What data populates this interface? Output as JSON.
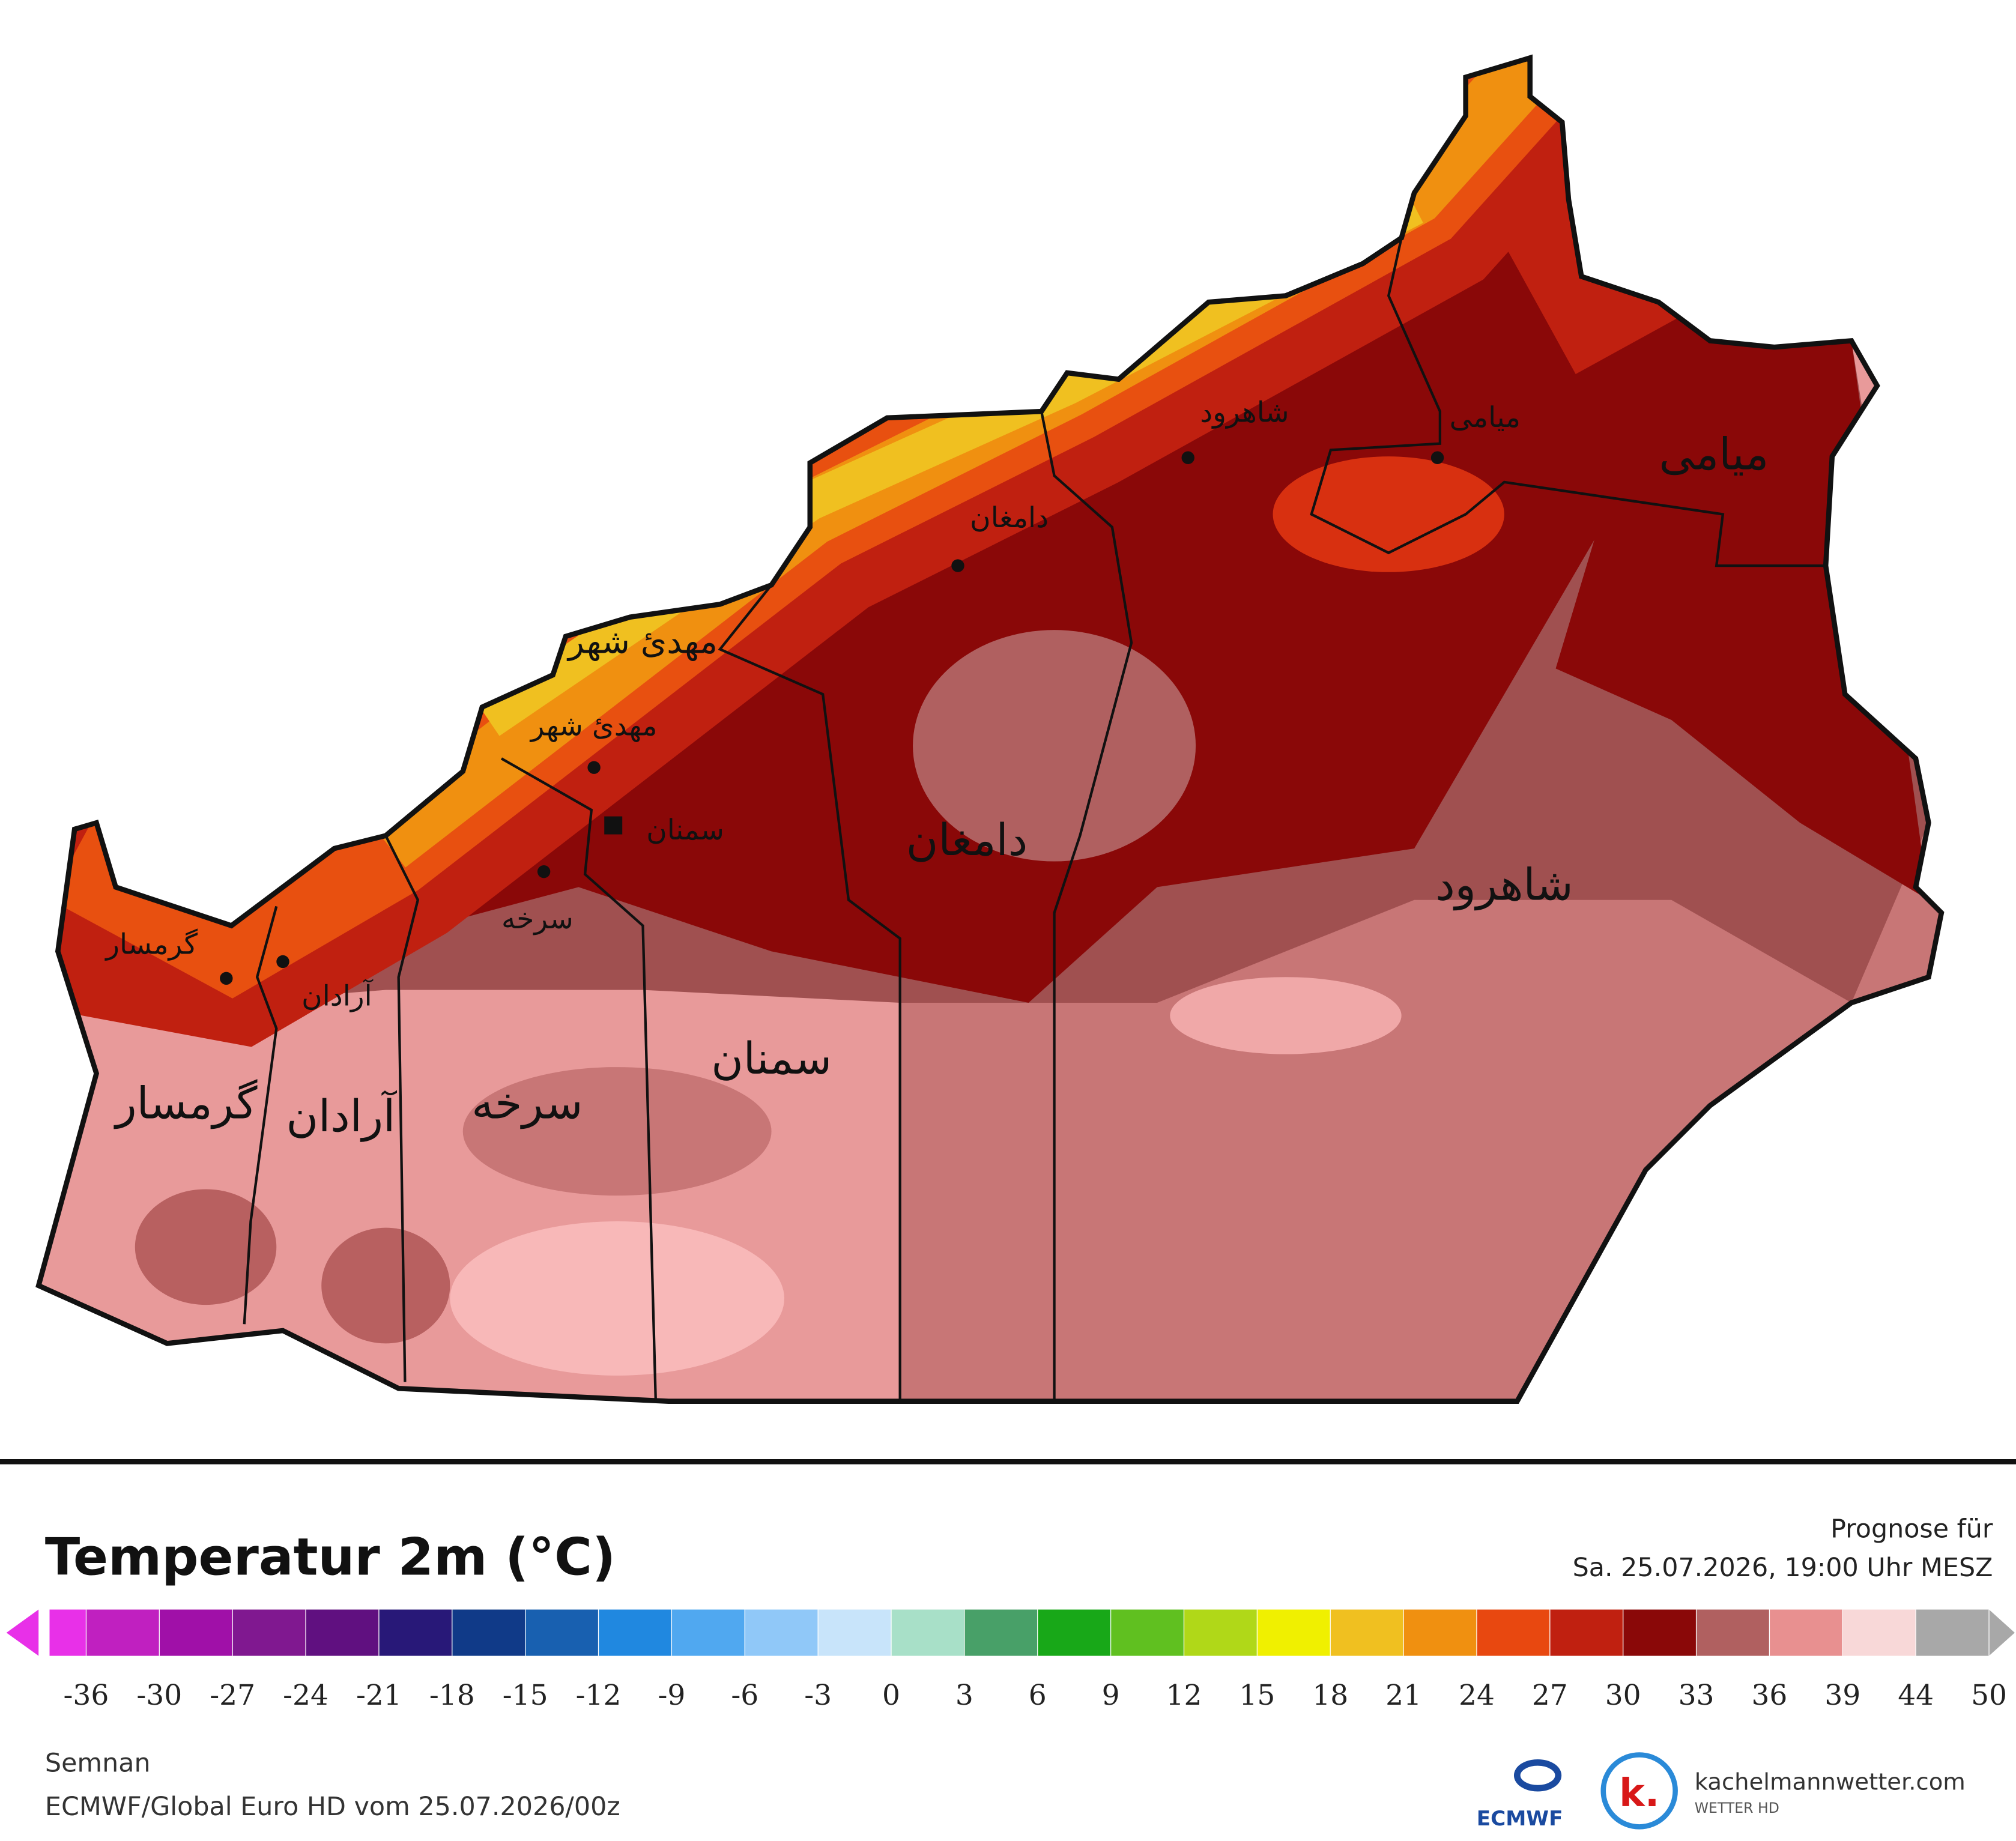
{
  "map": {
    "region_labels": [
      "گرمسار",
      "آرادان",
      "سرخه",
      "سمنان",
      "دامغان",
      "شاهرود",
      "میامی",
      "مهدئ شهر"
    ],
    "city_labels": [
      "گرمسار",
      "آرادان",
      "سرخه",
      "سمنان",
      "مهدئ شهر",
      "دامغان",
      "شاهرود",
      "میامی"
    ]
  },
  "legend": {
    "title": "Temperatur 2m (°C)",
    "ticks": [
      -36,
      -30,
      -27,
      -24,
      -21,
      -18,
      -15,
      -12,
      -9,
      -6,
      -3,
      0,
      3,
      6,
      9,
      12,
      15,
      18,
      21,
      24,
      27,
      30,
      33,
      36,
      39,
      44,
      50
    ],
    "colors": [
      "#e830e8",
      "#c020c0",
      "#a010a8",
      "#801890",
      "#601080",
      "#281878",
      "#103a88",
      "#1860b0",
      "#2088e0",
      "#50a8f0",
      "#90c8f8",
      "#c8e4fa",
      "#a8e0c8",
      "#48a068",
      "#18a818",
      "#60c020",
      "#b0d818",
      "#f0f000",
      "#f0c020",
      "#f09010",
      "#e84810",
      "#c02010",
      "#8a0808",
      "#b06060",
      "#e89090",
      "#f8d8d8",
      "#a8a8a8"
    ]
  },
  "forecast": {
    "label": "Prognose für",
    "time": "Sa. 25.07.2026, 19:00 Uhr MESZ"
  },
  "footer": {
    "region": "Semnan",
    "model": "ECMWF/Global Euro HD vom  25.07.2026/00z",
    "logos": [
      "ECMWF",
      "k.",
      "kachelmannwetter.com",
      "WETTER HD"
    ]
  }
}
